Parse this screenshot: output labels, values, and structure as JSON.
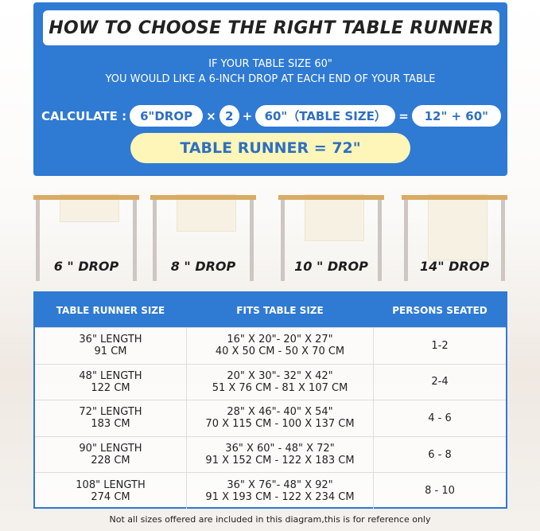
{
  "title": "HOW TO CHOOSE THE RIGHT TABLE RUNNER",
  "intro": [
    "IF YOUR TABLE SIZE 60\"",
    "YOU WOULD LIKE A 6-INCH DROP AT EACH END OF YOUR TABLE"
  ],
  "calc": {
    "label": "CALCULATE :",
    "drop": "6\"DROP",
    "times": "×",
    "multiplier": "2",
    "plus": "+",
    "table_size": "60\"（TABLE SIZE）",
    "equals": "=",
    "sum": "12\" + 60\"",
    "result": "TABLE RUNNER = 72\""
  },
  "drops": [
    {
      "label": "6 \" DROP",
      "inches": 6
    },
    {
      "label": "8 \" DROP",
      "inches": 8
    },
    {
      "label": "10 \" DROP",
      "inches": 10
    },
    {
      "label": "14\" DROP",
      "inches": 14
    }
  ],
  "table": {
    "headers": [
      "TABLE RUNNER SIZE",
      "FITS TABLE SIZE",
      "PERSONS SEATED"
    ],
    "rows": [
      {
        "size": [
          "36\" LENGTH",
          "91 CM"
        ],
        "fits": [
          "16\" X 20\"- 20\" X 27\"",
          "40 X 50 CM - 50 X 70 CM"
        ],
        "persons": "1-2"
      },
      {
        "size": [
          "48\" LENGTH",
          "122 CM"
        ],
        "fits": [
          "20\" X 30\"- 32\" X 42\"",
          "51 X 76 CM - 81 X 107 CM"
        ],
        "persons": "2-4"
      },
      {
        "size": [
          "72\" LENGTH",
          "183 CM"
        ],
        "fits": [
          "28\" X 46\"- 40\" X 54\"",
          "70 X 115 CM - 100 X 137 CM"
        ],
        "persons": "4 - 6"
      },
      {
        "size": [
          "90\" LENGTH",
          "228 CM"
        ],
        "fits": [
          "36\" X 60\" - 48\" X 72\"",
          "91 X 152 CM - 122 X 183 CM"
        ],
        "persons": "6 - 8"
      },
      {
        "size": [
          "108\" LENGTH",
          "274 CM"
        ],
        "fits": [
          "36\" X 76\"- 48\" X 92\"",
          "91 X 193 CM - 122 X 234 CM"
        ],
        "persons": "8 - 10"
      }
    ]
  },
  "footnote": "Not all sizes offered are included in this diagram,this is for reference only",
  "colors": {
    "brand_blue": "#2f7ad3",
    "result_yellow": "#fdf6b8",
    "tabletop": "#d9ab63"
  }
}
